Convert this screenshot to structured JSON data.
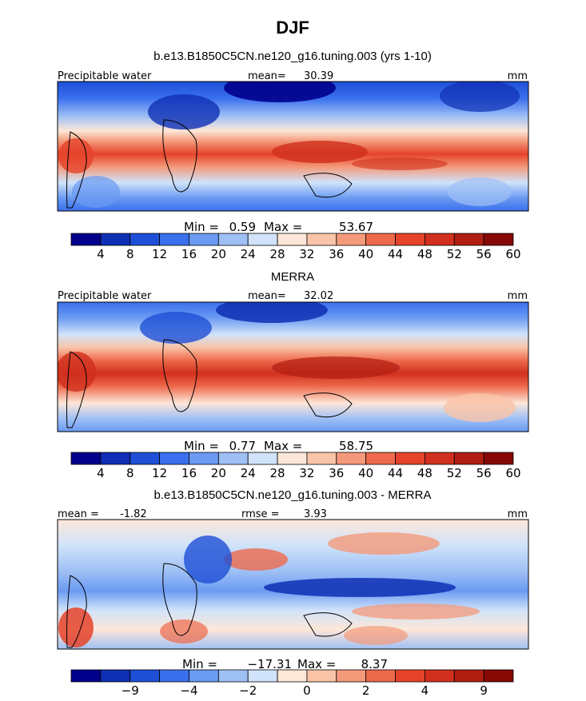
{
  "figure": {
    "season": "DJF"
  },
  "chart_data": [
    {
      "type": "heatmap",
      "title": "b.e13.B1850C5CN.ne120_g16.tuning.003 (yrs 1-10)",
      "variable": "Precipitable water",
      "units": "mm",
      "mean_label": "mean=",
      "mean": "30.39",
      "min_label": "Min =",
      "min": "0.59",
      "max_label": "Max =",
      "max": "53.67",
      "colorbar": {
        "levels": [
          "4",
          "8",
          "12",
          "16",
          "20",
          "24",
          "28",
          "32",
          "36",
          "40",
          "44",
          "48",
          "52",
          "56",
          "60"
        ],
        "colors": [
          "#00008c",
          "#0f2fb4",
          "#1e4fd6",
          "#3a70ee",
          "#6a9af2",
          "#9fc0f5",
          "#d0e3fa",
          "#fde7d8",
          "#f9c4a8",
          "#f49a7b",
          "#ee6a4c",
          "#e5432a",
          "#d0301d",
          "#b01e12",
          "#850805"
        ]
      }
    },
    {
      "type": "heatmap",
      "title": "MERRA",
      "variable": "Precipitable water",
      "units": "mm",
      "mean_label": "mean=",
      "mean": "32.02",
      "min_label": "Min =",
      "min": "0.77",
      "max_label": "Max =",
      "max": "58.75",
      "colorbar": {
        "levels": [
          "4",
          "8",
          "12",
          "16",
          "20",
          "24",
          "28",
          "32",
          "36",
          "40",
          "44",
          "48",
          "52",
          "56",
          "60"
        ],
        "colors": [
          "#00008c",
          "#0f2fb4",
          "#1e4fd6",
          "#3a70ee",
          "#6a9af2",
          "#9fc0f5",
          "#d0e3fa",
          "#fde7d8",
          "#f9c4a8",
          "#f49a7b",
          "#ee6a4c",
          "#e5432a",
          "#d0301d",
          "#b01e12",
          "#850805"
        ]
      }
    },
    {
      "type": "heatmap",
      "title": "b.e13.B1850C5CN.ne120_g16.tuning.003 - MERRA",
      "units": "mm",
      "mean_label": "mean =",
      "mean": "-1.82",
      "rmse_label": "rmse =",
      "rmse": "3.93",
      "min_label": "Min =",
      "min": "−17.31",
      "max_label": "Max =",
      "max": "8.37",
      "colorbar": {
        "labels": [
          "−9",
          "−4",
          "−2",
          "0",
          "2",
          "4",
          "9"
        ],
        "colors": [
          "#00008c",
          "#0f2fb4",
          "#1e4fd6",
          "#3a70ee",
          "#6a9af2",
          "#9fc0f5",
          "#d0e3fa",
          "#fde7d8",
          "#f9c4a8",
          "#f49a7b",
          "#ee6a4c",
          "#e5432a",
          "#d0301d",
          "#b01e12",
          "#850805"
        ]
      }
    }
  ]
}
